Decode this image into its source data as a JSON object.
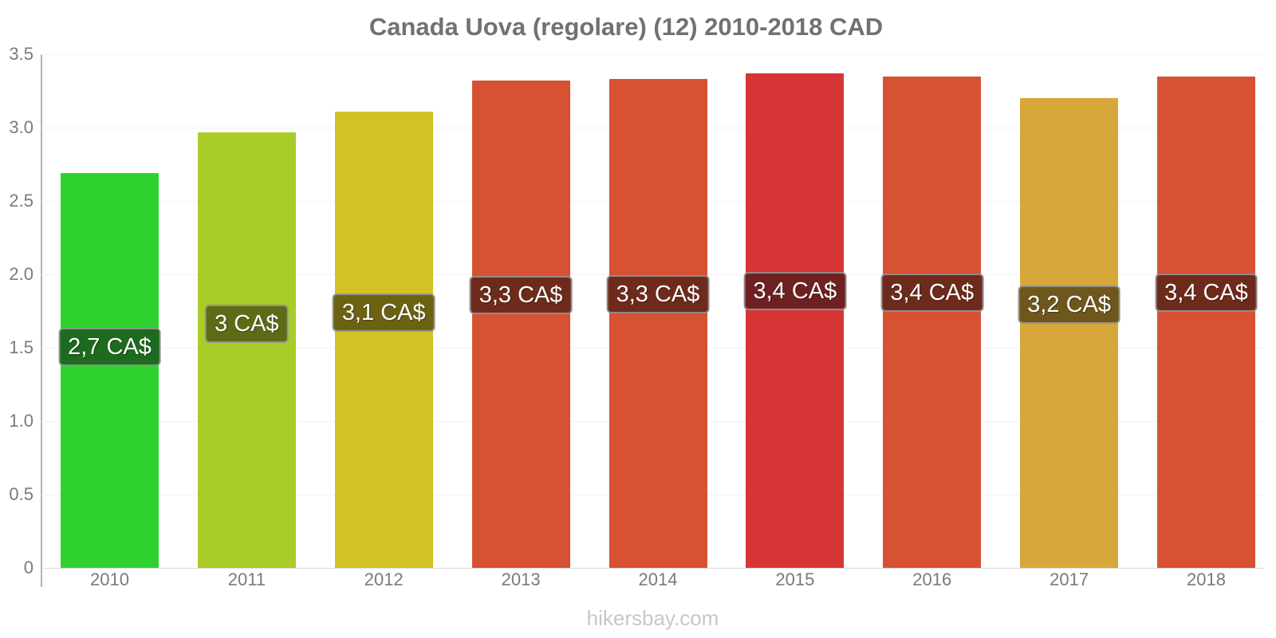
{
  "title": "Canada Uova (regolare) (12) 2010-2018 CAD",
  "footer": "hikersbay.com",
  "chart_data": {
    "type": "bar",
    "title": "Canada Uova (regolare) (12) 2010-2018 CAD",
    "xlabel": "",
    "ylabel": "",
    "currency": "CAD",
    "ylim": [
      0,
      3.5
    ],
    "grid": true,
    "legend": false,
    "categories": [
      "2010",
      "2011",
      "2012",
      "2013",
      "2014",
      "2015",
      "2016",
      "2017",
      "2018"
    ],
    "values": [
      2.69,
      2.97,
      3.11,
      3.32,
      3.33,
      3.37,
      3.35,
      3.2,
      3.35
    ],
    "bar_labels": [
      "2,7 CA$",
      "3 CA$",
      "3,1 CA$",
      "3,3 CA$",
      "3,3 CA$",
      "3,4 CA$",
      "3,4 CA$",
      "3,2 CA$",
      "3,4 CA$"
    ],
    "bar_colors": [
      "#2fd12f",
      "#a9cc29",
      "#d3c227",
      "#d65232",
      "#d65232",
      "#d63535",
      "#d65232",
      "#d8a73b",
      "#d65232"
    ],
    "bar_label_bg_colors": [
      "#1e6a1e",
      "#5c6b16",
      "#6b6214",
      "#6e2b1b",
      "#6e2b1b",
      "#6f2020",
      "#6e2b1b",
      "#6e571d",
      "#6e2b1b"
    ],
    "yticks": [
      {
        "v": 3.5,
        "label": "3.5"
      },
      {
        "v": 3.0,
        "label": "3.0"
      },
      {
        "v": 2.5,
        "label": "2.5"
      },
      {
        "v": 2.0,
        "label": "2.0"
      },
      {
        "v": 1.5,
        "label": "1.5"
      },
      {
        "v": 1.0,
        "label": "1.0"
      },
      {
        "v": 0.5,
        "label": "0.5"
      },
      {
        "v": 0.0,
        "label": "0"
      }
    ]
  }
}
